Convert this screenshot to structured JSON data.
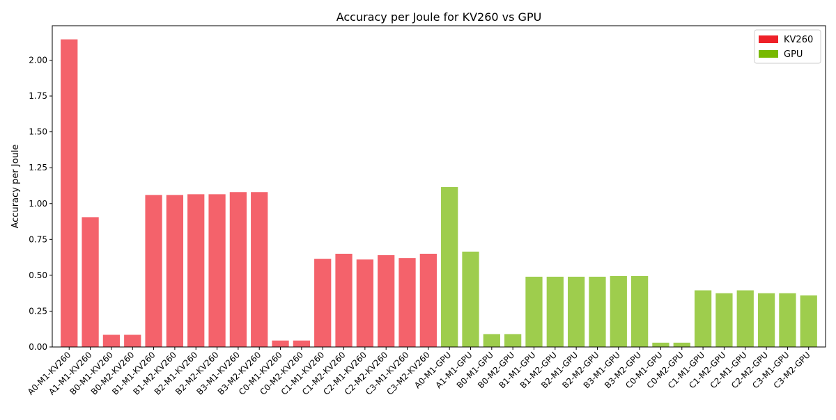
{
  "chart_data": {
    "type": "bar",
    "title": "Accuracy per Joule for KV260 vs GPU",
    "xlabel": "",
    "ylabel": "Accuracy per Joule",
    "ylim": [
      0,
      2.24
    ],
    "yticks": [
      "0.00",
      "0.25",
      "0.50",
      "0.75",
      "1.00",
      "1.25",
      "1.50",
      "1.75",
      "2.00"
    ],
    "grid": false,
    "legend_position": "top-right",
    "categories": [
      "A0-M1-KV260",
      "A1-M1-KV260",
      "B0-M1-KV260",
      "B0-M2-KV260",
      "B1-M1-KV260",
      "B1-M2-KV260",
      "B2-M1-KV260",
      "B2-M2-KV260",
      "B3-M1-KV260",
      "B3-M2-KV260",
      "C0-M1-KV260",
      "C0-M2-KV260",
      "C1-M1-KV260",
      "C1-M2-KV260",
      "C2-M1-KV260",
      "C2-M2-KV260",
      "C3-M1-KV260",
      "C3-M2-KV260",
      "A0-M1-GPU",
      "A1-M1-GPU",
      "B0-M1-GPU",
      "B0-M2-GPU",
      "B1-M1-GPU",
      "B1-M2-GPU",
      "B2-M1-GPU",
      "B2-M2-GPU",
      "B3-M1-GPU",
      "B3-M2-GPU",
      "C0-M1-GPU",
      "C0-M2-GPU",
      "C1-M1-GPU",
      "C1-M2-GPU",
      "C2-M1-GPU",
      "C2-M2-GPU",
      "C3-M1-GPU",
      "C3-M2-GPU"
    ],
    "values": [
      2.145,
      0.905,
      0.085,
      0.085,
      1.06,
      1.06,
      1.065,
      1.065,
      1.08,
      1.08,
      0.045,
      0.045,
      0.615,
      0.65,
      0.61,
      0.64,
      0.62,
      0.65,
      1.115,
      0.665,
      0.09,
      0.09,
      0.49,
      0.49,
      0.49,
      0.49,
      0.495,
      0.495,
      0.03,
      0.03,
      0.395,
      0.375,
      0.395,
      0.375,
      0.375,
      0.36
    ],
    "groups": [
      "KV260",
      "KV260",
      "KV260",
      "KV260",
      "KV260",
      "KV260",
      "KV260",
      "KV260",
      "KV260",
      "KV260",
      "KV260",
      "KV260",
      "KV260",
      "KV260",
      "KV260",
      "KV260",
      "KV260",
      "KV260",
      "GPU",
      "GPU",
      "GPU",
      "GPU",
      "GPU",
      "GPU",
      "GPU",
      "GPU",
      "GPU",
      "GPU",
      "GPU",
      "GPU",
      "GPU",
      "GPU",
      "GPU",
      "GPU",
      "GPU",
      "GPU"
    ],
    "bar_colors": {
      "KV260": "#f4626b",
      "GPU": "#9ecd4d"
    },
    "legend": [
      {
        "name": "KV260",
        "color": "#ee2028"
      },
      {
        "name": "GPU",
        "color": "#77b900"
      }
    ]
  }
}
